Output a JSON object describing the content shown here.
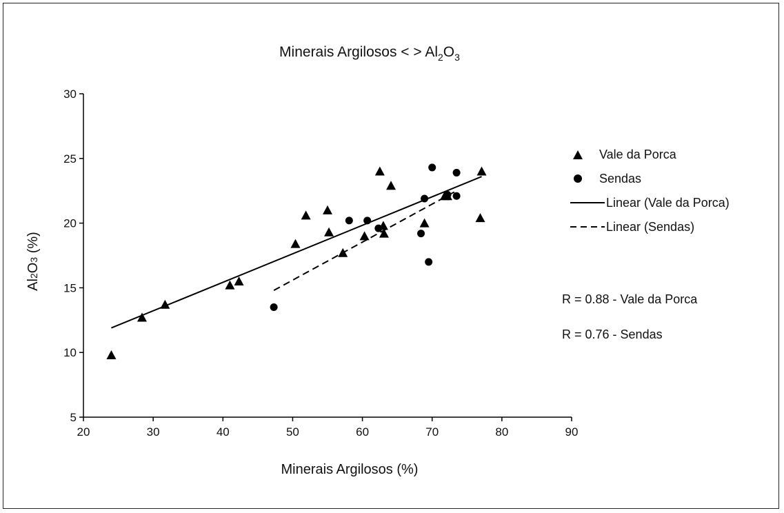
{
  "chart_data": {
    "type": "scatter",
    "title": {
      "main": "Minerais Argilosos < > Al",
      "sub1": "2",
      "mid": "O",
      "sub2": "3"
    },
    "xlabel": "Minerais Argilosos (%)",
    "ylabel": {
      "prefix": "Al",
      "sub": "2",
      "mid": "O",
      "sub2": "3",
      "suffix": " (%)"
    },
    "xlim": [
      20,
      90
    ],
    "ylim": [
      5,
      30
    ],
    "xticks": [
      20,
      30,
      40,
      50,
      60,
      70,
      80,
      90
    ],
    "yticks": [
      5,
      10,
      15,
      20,
      25,
      30
    ],
    "grid": false,
    "legend_position": "right",
    "series": [
      {
        "name": "Vale da Porca",
        "marker": "triangle",
        "points": [
          [
            24.0,
            9.8
          ],
          [
            28.4,
            12.7
          ],
          [
            31.7,
            13.7
          ],
          [
            41.0,
            15.2
          ],
          [
            42.3,
            15.5
          ],
          [
            50.4,
            18.4
          ],
          [
            51.9,
            20.6
          ],
          [
            55.0,
            21.0
          ],
          [
            55.2,
            19.3
          ],
          [
            57.2,
            17.7
          ],
          [
            60.3,
            19.0
          ],
          [
            62.5,
            24.0
          ],
          [
            63.0,
            19.8
          ],
          [
            63.1,
            19.2
          ],
          [
            64.1,
            22.9
          ],
          [
            68.9,
            20.0
          ],
          [
            71.8,
            22.1
          ],
          [
            72.2,
            22.1
          ],
          [
            76.9,
            20.4
          ],
          [
            77.1,
            24.0
          ]
        ]
      },
      {
        "name": "Sendas",
        "marker": "circle",
        "points": [
          [
            47.3,
            13.5
          ],
          [
            58.1,
            20.2
          ],
          [
            60.7,
            20.2
          ],
          [
            62.3,
            19.6
          ],
          [
            68.4,
            19.2
          ],
          [
            68.9,
            21.9
          ],
          [
            69.5,
            17.0
          ],
          [
            70.0,
            24.3
          ],
          [
            72.2,
            22.2
          ],
          [
            73.5,
            23.9
          ],
          [
            73.5,
            22.1
          ]
        ]
      }
    ],
    "trendlines": [
      {
        "name": "Linear (Vale da Porca)",
        "style": "solid",
        "from": [
          24.0,
          11.9
        ],
        "to": [
          77.1,
          23.6
        ]
      },
      {
        "name": "Linear (Sendas)",
        "style": "dashed",
        "from": [
          47.3,
          14.8
        ],
        "to": [
          73.5,
          22.5
        ]
      }
    ],
    "annotations": [
      "R = 0.88 - Vale da Porca",
      "R = 0.76 - Sendas"
    ]
  }
}
